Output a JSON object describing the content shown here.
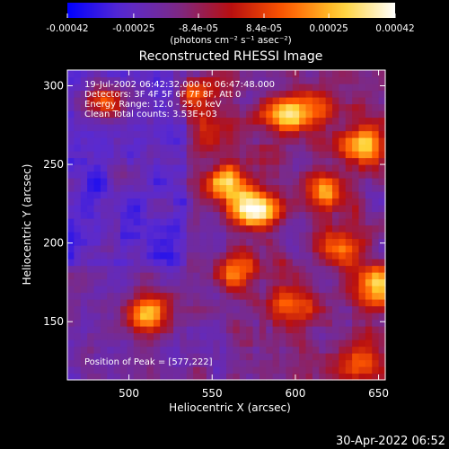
{
  "colorbar": {
    "tick_labels": [
      "-0.00042",
      "-0.00025",
      "-8.4e-05",
      "8.4e-05",
      "0.00025",
      "0.00042"
    ],
    "tick_values": [
      -0.00042,
      -0.00025,
      -8.4e-05,
      8.4e-05,
      0.00025,
      0.00042
    ],
    "range": [
      -0.00042,
      0.00042
    ],
    "units_label": "(photons cm⁻² s⁻¹ asec⁻²)",
    "colormap": [
      "#0000ff",
      "#5a2ad0",
      "#7a2a8a",
      "#b80f10",
      "#ff5a00",
      "#ffd030",
      "#ffffff"
    ]
  },
  "chart_data": {
    "type": "heatmap",
    "title": "Reconstructed RHESSI Image",
    "xlabel": "Heliocentric X (arcsec)",
    "ylabel": "Heliocentric Y (arcsec)",
    "xlim": [
      463,
      654
    ],
    "ylim": [
      113,
      310
    ],
    "xticks": [
      500,
      550,
      600,
      650
    ],
    "yticks": [
      150,
      200,
      250,
      300
    ],
    "peak": [
      577,
      222
    ],
    "annotation_lines": [
      "19-Jul-2002 06:42:32.000 to 06:47:48.000",
      "Detectors: 3F 4F 5F 6F 7F 8F, Att 0",
      "Energy Range: 12.0 - 25.0 keV",
      "Clean     Total counts: 3.53E+03"
    ],
    "peak_label": "Position of Peak = [577,222]",
    "bright_sources": [
      {
        "x": 575,
        "y": 222,
        "peak_frac": 1.0
      },
      {
        "x": 557,
        "y": 238,
        "peak_frac": 0.72
      },
      {
        "x": 593,
        "y": 280,
        "peak_frac": 0.55
      },
      {
        "x": 640,
        "y": 263,
        "peak_frac": 0.82
      },
      {
        "x": 617,
        "y": 233,
        "peak_frac": 0.55
      },
      {
        "x": 610,
        "y": 285,
        "peak_frac": 0.5
      },
      {
        "x": 550,
        "y": 270,
        "peak_frac": 0.45
      },
      {
        "x": 625,
        "y": 198,
        "peak_frac": 0.55
      },
      {
        "x": 650,
        "y": 175,
        "peak_frac": 0.72
      },
      {
        "x": 598,
        "y": 160,
        "peak_frac": 0.5
      },
      {
        "x": 565,
        "y": 183,
        "peak_frac": 0.45
      },
      {
        "x": 512,
        "y": 155,
        "peak_frac": 0.68
      },
      {
        "x": 485,
        "y": 290,
        "peak_frac": 0.6
      },
      {
        "x": 540,
        "y": 295,
        "peak_frac": 0.5
      },
      {
        "x": 638,
        "y": 125,
        "peak_frac": 0.5
      }
    ]
  },
  "footer": {
    "timestamp": "30-Apr-2022 06:52"
  }
}
